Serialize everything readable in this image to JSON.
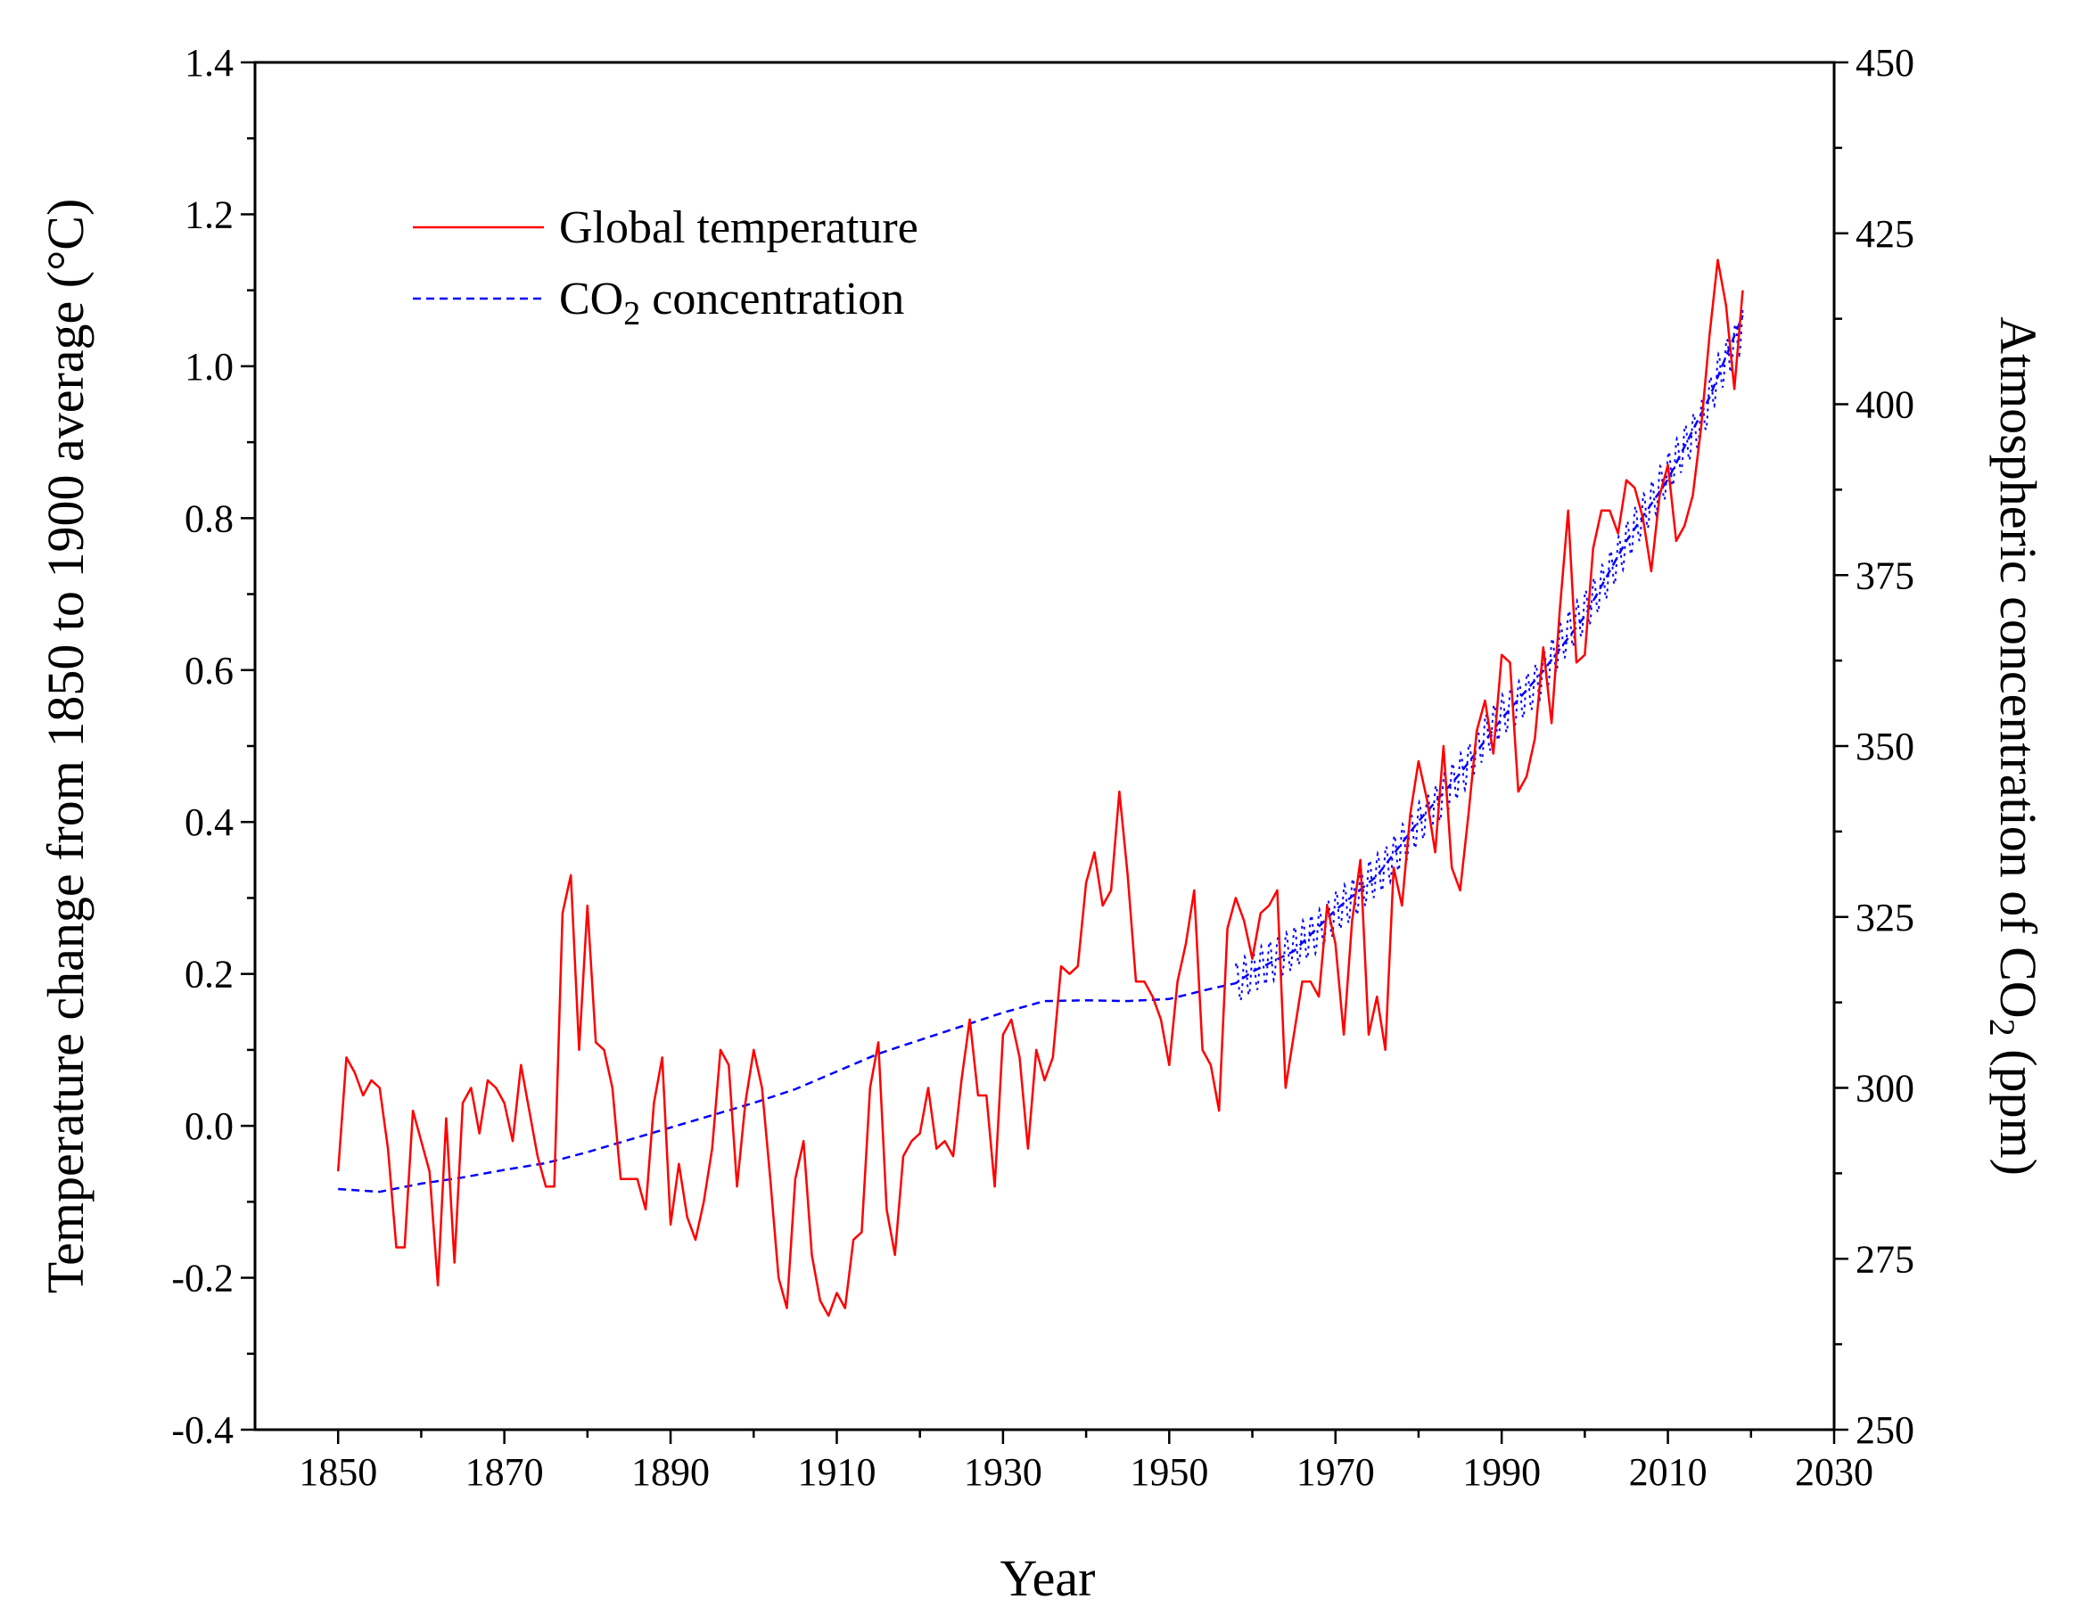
{
  "chart_data": {
    "type": "line",
    "title": "",
    "xlabel": "Year",
    "ylabel_left": "Temperature change from 1850 to 1900 average (°C)",
    "ylabel_right": {
      "before": "Atmospheric concentration of CO",
      "sub": "2",
      "after": " (ppm)"
    },
    "xlim": [
      1840,
      2030
    ],
    "ylim_left": [
      -0.4,
      1.4
    ],
    "ylim_right": [
      250,
      450
    ],
    "x_ticks": [
      "1850",
      "1870",
      "1890",
      "1910",
      "1930",
      "1950",
      "1970",
      "1990",
      "2010",
      "2030"
    ],
    "y_left_ticks": [
      "-0.4",
      "-0.2",
      "0.0",
      "0.2",
      "0.4",
      "0.6",
      "0.8",
      "1.0",
      "1.2",
      "1.4"
    ],
    "y_right_ticks": [
      "250",
      "275",
      "300",
      "325",
      "350",
      "375",
      "400",
      "425",
      "450"
    ],
    "grid": false,
    "legend_position": "top-left",
    "legend": [
      {
        "label": "Global temperature",
        "color": "#ff0000",
        "style": "solid"
      },
      {
        "label_before": "CO",
        "label_sub": "2",
        "label_after": " concentration",
        "color": "#0000ff",
        "style": "dashed"
      }
    ],
    "series": [
      {
        "name": "Global temperature",
        "axis": "left",
        "color": "#ff0000",
        "x": [
          1850,
          1851,
          1852,
          1853,
          1854,
          1855,
          1856,
          1857,
          1858,
          1859,
          1860,
          1861,
          1862,
          1863,
          1864,
          1865,
          1866,
          1867,
          1868,
          1869,
          1870,
          1871,
          1872,
          1873,
          1874,
          1875,
          1876,
          1877,
          1878,
          1879,
          1880,
          1881,
          1882,
          1883,
          1884,
          1885,
          1886,
          1887,
          1888,
          1889,
          1890,
          1891,
          1892,
          1893,
          1894,
          1895,
          1896,
          1897,
          1898,
          1899,
          1900,
          1901,
          1902,
          1903,
          1904,
          1905,
          1906,
          1907,
          1908,
          1909,
          1910,
          1911,
          1912,
          1913,
          1914,
          1915,
          1916,
          1917,
          1918,
          1919,
          1920,
          1921,
          1922,
          1923,
          1924,
          1925,
          1926,
          1927,
          1928,
          1929,
          1930,
          1931,
          1932,
          1933,
          1934,
          1935,
          1936,
          1937,
          1938,
          1939,
          1940,
          1941,
          1942,
          1943,
          1944,
          1945,
          1946,
          1947,
          1948,
          1949,
          1950,
          1951,
          1952,
          1953,
          1954,
          1955,
          1956,
          1957,
          1958,
          1959,
          1960,
          1961,
          1962,
          1963,
          1964,
          1965,
          1966,
          1967,
          1968,
          1969,
          1970,
          1971,
          1972,
          1973,
          1974,
          1975,
          1976,
          1977,
          1978,
          1979,
          1980,
          1981,
          1982,
          1983,
          1984,
          1985,
          1986,
          1987,
          1988,
          1989,
          1990,
          1991,
          1992,
          1993,
          1994,
          1995,
          1996,
          1997,
          1998,
          1999,
          2000,
          2001,
          2002,
          2003,
          2004,
          2005,
          2006,
          2007,
          2008,
          2009,
          2010,
          2011,
          2012,
          2013,
          2014,
          2015,
          2016,
          2017,
          2018,
          2019
        ],
        "values": [
          -0.06,
          0.09,
          0.07,
          0.04,
          0.06,
          0.05,
          -0.03,
          -0.16,
          -0.16,
          0.02,
          -0.02,
          -0.06,
          -0.21,
          0.01,
          -0.18,
          0.03,
          0.05,
          -0.01,
          0.06,
          0.05,
          0.03,
          -0.02,
          0.08,
          0.02,
          -0.04,
          -0.08,
          -0.08,
          0.28,
          0.33,
          0.1,
          0.29,
          0.11,
          0.1,
          0.05,
          -0.07,
          -0.07,
          -0.07,
          -0.11,
          0.03,
          0.09,
          -0.13,
          -0.05,
          -0.12,
          -0.15,
          -0.1,
          -0.03,
          0.1,
          0.08,
          -0.08,
          0.03,
          0.1,
          0.05,
          -0.07,
          -0.2,
          -0.24,
          -0.07,
          -0.02,
          -0.17,
          -0.23,
          -0.25,
          -0.22,
          -0.24,
          -0.15,
          -0.14,
          0.05,
          0.11,
          -0.11,
          -0.17,
          -0.04,
          -0.02,
          -0.01,
          0.05,
          -0.03,
          -0.02,
          -0.04,
          0.06,
          0.14,
          0.04,
          0.04,
          -0.08,
          0.12,
          0.14,
          0.09,
          -0.03,
          0.1,
          0.06,
          0.09,
          0.21,
          0.2,
          0.21,
          0.32,
          0.36,
          0.29,
          0.31,
          0.44,
          0.33,
          0.19,
          0.19,
          0.17,
          0.14,
          0.08,
          0.19,
          0.24,
          0.31,
          0.1,
          0.08,
          0.02,
          0.26,
          0.3,
          0.27,
          0.22,
          0.28,
          0.29,
          0.31,
          0.05,
          0.12,
          0.19,
          0.19,
          0.17,
          0.29,
          0.24,
          0.12,
          0.27,
          0.35,
          0.12,
          0.17,
          0.1,
          0.34,
          0.29,
          0.41,
          0.48,
          0.43,
          0.36,
          0.5,
          0.34,
          0.31,
          0.41,
          0.52,
          0.56,
          0.49,
          0.62,
          0.61,
          0.44,
          0.46,
          0.51,
          0.63,
          0.53,
          0.68,
          0.81,
          0.61,
          0.62,
          0.76,
          0.81,
          0.81,
          0.78,
          0.85,
          0.84,
          0.8,
          0.73,
          0.83,
          0.87,
          0.77,
          0.79,
          0.83,
          0.92,
          1.04,
          1.14,
          1.08,
          0.97,
          1.1
        ]
      },
      {
        "name": "CO2 concentration",
        "axis": "right",
        "color": "#0000ff",
        "x": [
          1850,
          1855,
          1860,
          1865,
          1870,
          1875,
          1880,
          1885,
          1890,
          1895,
          1900,
          1905,
          1910,
          1915,
          1920,
          1925,
          1930,
          1935,
          1940,
          1945,
          1950,
          1955,
          1958,
          1960,
          1965,
          1970,
          1975,
          1980,
          1985,
          1990,
          1995,
          2000,
          2005,
          2010,
          2015,
          2019
        ],
        "values": [
          285.2,
          284.8,
          286.0,
          286.9,
          288.0,
          289.0,
          290.6,
          292.4,
          294.2,
          296.0,
          297.8,
          299.8,
          302.4,
          305.0,
          307.0,
          309.0,
          311.0,
          312.7,
          312.8,
          312.7,
          313.0,
          314.5,
          315.3,
          317.0,
          320.0,
          326.0,
          331.0,
          339.0,
          346.0,
          354.0,
          361.0,
          369.0,
          380.0,
          389.0,
          401.0,
          413.0
        ]
      },
      {
        "name": "CO2 monthly",
        "axis": "right",
        "color": "#0000ff",
        "x": [
          1958,
          1960,
          1962,
          1964,
          1966,
          1968,
          1970,
          1972,
          1974,
          1976,
          1978,
          1980,
          1982,
          1984,
          1986,
          1988,
          1990,
          1992,
          1994,
          1996,
          1998,
          2000,
          2002,
          2004,
          2006,
          2008,
          2010,
          2012,
          2014,
          2016,
          2018,
          2019
        ],
        "values": [
          315.3,
          316.9,
          318.4,
          319.6,
          321.4,
          323.0,
          325.7,
          327.5,
          330.2,
          332.2,
          335.4,
          338.7,
          341.1,
          344.4,
          347.2,
          351.5,
          354.4,
          356.4,
          358.8,
          362.6,
          366.7,
          369.6,
          373.3,
          377.5,
          381.9,
          385.6,
          389.9,
          393.8,
          397.2,
          404.2,
          408.5,
          411.4
        ],
        "amplitude_ppm": 3
      }
    ]
  }
}
